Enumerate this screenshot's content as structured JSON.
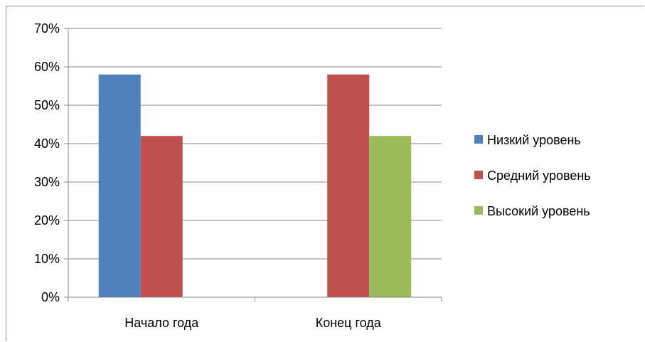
{
  "chart_data": {
    "type": "bar",
    "categories": [
      "Начало года",
      "Конец года"
    ],
    "series": [
      {
        "name": "Низкий уровень",
        "color": "#4f81bd",
        "values": [
          58,
          0
        ]
      },
      {
        "name": "Средний уровень",
        "color": "#c0504d",
        "values": [
          42,
          58
        ]
      },
      {
        "name": "Высокий уровень",
        "color": "#9bbb59",
        "values": [
          0,
          42
        ]
      }
    ],
    "ylim": [
      0,
      70
    ],
    "yticks": [
      0,
      10,
      20,
      30,
      40,
      50,
      60,
      70
    ],
    "ytick_labels": [
      "0%",
      "10%",
      "20%",
      "30%",
      "40%",
      "50%",
      "60%",
      "70%"
    ],
    "grid": true,
    "legend": "right",
    "title": "",
    "xlabel": "",
    "ylabel": ""
  }
}
